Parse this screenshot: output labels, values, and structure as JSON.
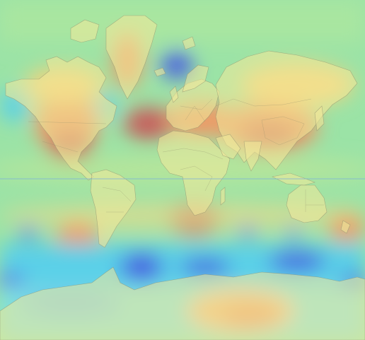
{
  "map": {
    "type": "world-heatmap",
    "projection": "mercator",
    "colors": {
      "ocean_base": "#9be3a6",
      "cold_strong": "#4a5fe0",
      "cold": "#5ad0e8",
      "mild": "#a7e39a",
      "warm": "#f3d27a",
      "hot": "#ee9a66",
      "very_hot": "#c85a5a",
      "land_overlay": "#f2e99a",
      "borders": "#8a8a6a",
      "equator_line": "#7fb0d6"
    },
    "show_equator": true,
    "show_country_borders": true
  }
}
